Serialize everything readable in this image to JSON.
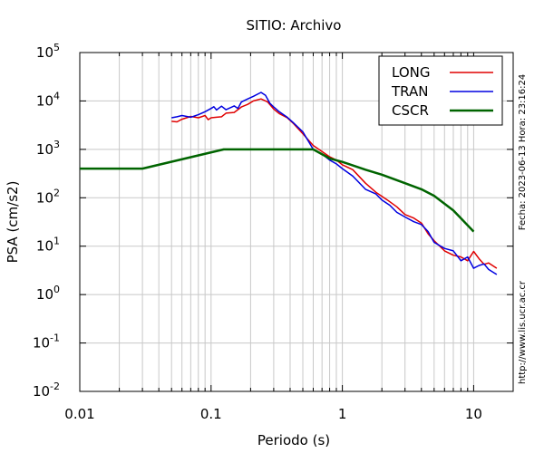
{
  "chart_data": {
    "type": "line",
    "title": "SITIO: Archivo",
    "xlabel": "Periodo (s)",
    "ylabel": "PSA (cm/s2)",
    "x_scale": "log",
    "y_scale": "log",
    "xlim": [
      0.01,
      20
    ],
    "ylim": [
      0.01,
      100000
    ],
    "grid": true,
    "legend_position": "top-right",
    "x_ticks": [
      {
        "value": 0.01,
        "label": "0.01"
      },
      {
        "value": 0.1,
        "label": "0.1"
      },
      {
        "value": 1,
        "label": "1"
      },
      {
        "value": 10,
        "label": "10"
      }
    ],
    "y_ticks": [
      {
        "value": 0.01,
        "base": "10",
        "exp": "-2"
      },
      {
        "value": 0.1,
        "base": "10",
        "exp": "-1"
      },
      {
        "value": 1,
        "base": "10",
        "exp": "0"
      },
      {
        "value": 10,
        "base": "10",
        "exp": "1"
      },
      {
        "value": 100,
        "base": "10",
        "exp": "2"
      },
      {
        "value": 1000,
        "base": "10",
        "exp": "3"
      },
      {
        "value": 10000,
        "base": "10",
        "exp": "4"
      },
      {
        "value": 100000,
        "base": "10",
        "exp": "5"
      }
    ],
    "series": [
      {
        "name": "LONG",
        "color": "#e00000",
        "line_width": 1.5,
        "points": [
          [
            0.05,
            3800
          ],
          [
            0.055,
            3700
          ],
          [
            0.06,
            4200
          ],
          [
            0.07,
            4800
          ],
          [
            0.08,
            4500
          ],
          [
            0.09,
            5000
          ],
          [
            0.095,
            4100
          ],
          [
            0.1,
            4500
          ],
          [
            0.11,
            4600
          ],
          [
            0.12,
            4700
          ],
          [
            0.13,
            5600
          ],
          [
            0.15,
            5800
          ],
          [
            0.17,
            7500
          ],
          [
            0.19,
            8500
          ],
          [
            0.21,
            10000
          ],
          [
            0.24,
            11000
          ],
          [
            0.27,
            9500
          ],
          [
            0.3,
            6800
          ],
          [
            0.33,
            5500
          ],
          [
            0.38,
            4500
          ],
          [
            0.42,
            3500
          ],
          [
            0.5,
            2100
          ],
          [
            0.6,
            1200
          ],
          [
            0.7,
            900
          ],
          [
            0.8,
            700
          ],
          [
            0.9,
            600
          ],
          [
            1.0,
            480
          ],
          [
            1.2,
            380
          ],
          [
            1.5,
            200
          ],
          [
            1.8,
            130
          ],
          [
            2.2,
            90
          ],
          [
            2.6,
            65
          ],
          [
            3.0,
            45
          ],
          [
            3.5,
            38
          ],
          [
            4.0,
            30
          ],
          [
            4.5,
            18
          ],
          [
            5.0,
            13
          ],
          [
            6.0,
            8
          ],
          [
            7.0,
            6.5
          ],
          [
            8.0,
            6.0
          ],
          [
            9.0,
            5.0
          ],
          [
            10.0,
            7.8
          ],
          [
            11.0,
            5.5
          ],
          [
            12.0,
            4.2
          ],
          [
            13.0,
            4.5
          ],
          [
            15.0,
            3.5
          ]
        ]
      },
      {
        "name": "TRAN",
        "color": "#0000e0",
        "line_width": 1.5,
        "points": [
          [
            0.05,
            4500
          ],
          [
            0.055,
            4700
          ],
          [
            0.06,
            5000
          ],
          [
            0.07,
            4600
          ],
          [
            0.08,
            5200
          ],
          [
            0.09,
            6000
          ],
          [
            0.1,
            7000
          ],
          [
            0.105,
            7600
          ],
          [
            0.11,
            6500
          ],
          [
            0.12,
            7800
          ],
          [
            0.13,
            6600
          ],
          [
            0.15,
            7900
          ],
          [
            0.16,
            7000
          ],
          [
            0.17,
            9500
          ],
          [
            0.19,
            11000
          ],
          [
            0.21,
            12500
          ],
          [
            0.24,
            15000
          ],
          [
            0.26,
            13000
          ],
          [
            0.28,
            9000
          ],
          [
            0.3,
            7500
          ],
          [
            0.33,
            6000
          ],
          [
            0.38,
            4600
          ],
          [
            0.42,
            3600
          ],
          [
            0.5,
            2300
          ],
          [
            0.6,
            1000
          ],
          [
            0.7,
            800
          ],
          [
            0.8,
            600
          ],
          [
            0.9,
            500
          ],
          [
            1.0,
            400
          ],
          [
            1.2,
            280
          ],
          [
            1.5,
            150
          ],
          [
            1.8,
            120
          ],
          [
            2.0,
            90
          ],
          [
            2.3,
            70
          ],
          [
            2.6,
            50
          ],
          [
            3.0,
            40
          ],
          [
            3.5,
            32
          ],
          [
            4.0,
            28
          ],
          [
            4.5,
            20
          ],
          [
            5.0,
            12
          ],
          [
            6.0,
            9
          ],
          [
            7.0,
            8
          ],
          [
            8.0,
            5
          ],
          [
            9.0,
            6
          ],
          [
            10.0,
            3.5
          ],
          [
            11.0,
            4
          ],
          [
            12.0,
            4.3
          ],
          [
            13.0,
            3.3
          ],
          [
            15.0,
            2.6
          ]
        ]
      },
      {
        "name": "CSCR",
        "color": "#006400",
        "line_width": 2.5,
        "points": [
          [
            0.01,
            400
          ],
          [
            0.03,
            400
          ],
          [
            0.125,
            1000
          ],
          [
            0.6,
            1000
          ],
          [
            0.8,
            650
          ],
          [
            1.0,
            550
          ],
          [
            1.5,
            380
          ],
          [
            2.0,
            300
          ],
          [
            3.0,
            200
          ],
          [
            4.0,
            150
          ],
          [
            5.0,
            110
          ],
          [
            7.0,
            55
          ],
          [
            10.0,
            20
          ]
        ]
      }
    ]
  },
  "side_labels": {
    "date": "Fecha: 2023-06-13 Hora: 23:16:24",
    "url": "http://www.lis.ucr.ac.cr"
  }
}
